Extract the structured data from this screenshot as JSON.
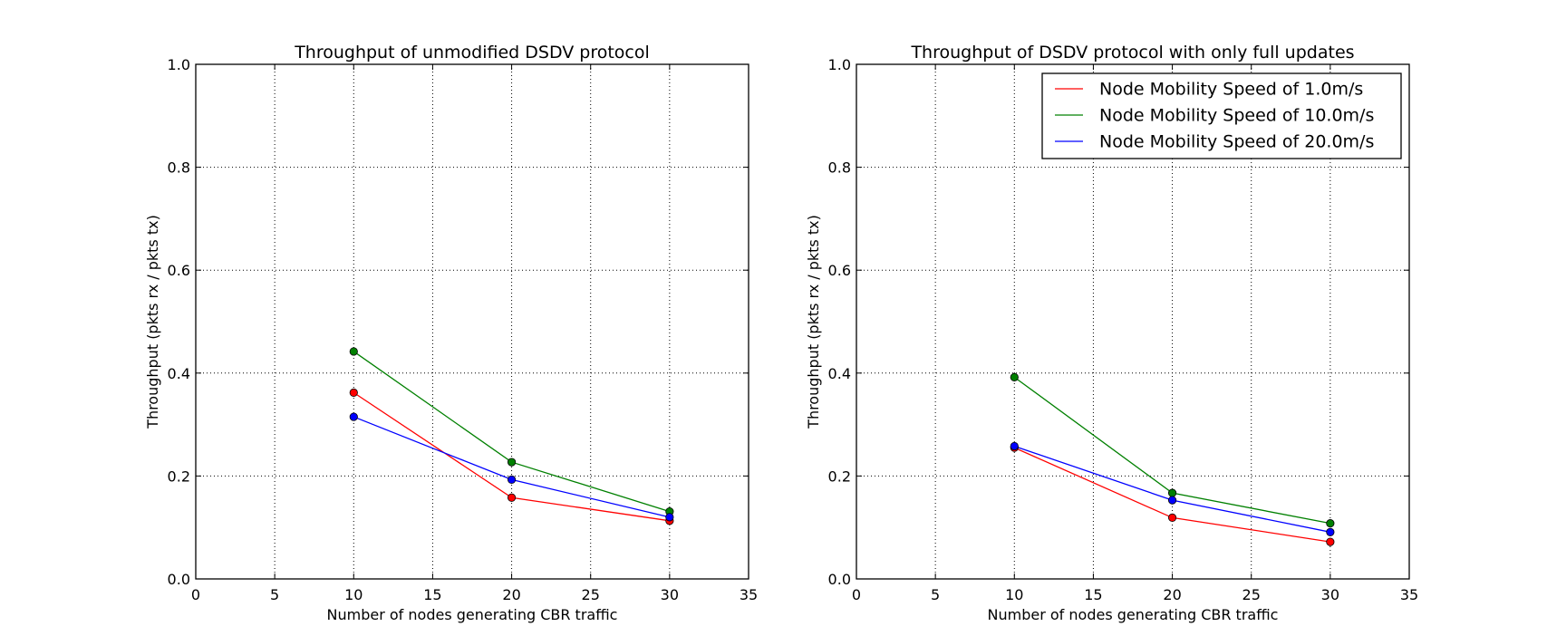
{
  "chart_data": [
    {
      "type": "line",
      "title": "Throughput of unmodified DSDV protocol",
      "xlabel": "Number of nodes generating CBR traffic",
      "ylabel": "Throughput (pkts rx / pkts tx)",
      "xlim": [
        0,
        35
      ],
      "ylim": [
        0.0,
        1.0
      ],
      "xticks": [
        "0",
        "5",
        "10",
        "15",
        "20",
        "25",
        "30",
        "35"
      ],
      "yticks": [
        "0.0",
        "0.2",
        "0.4",
        "0.6",
        "0.8",
        "1.0"
      ],
      "grid": true,
      "legend": null,
      "x": [
        10,
        20,
        30
      ],
      "series": [
        {
          "values": [
            0.362,
            0.158,
            0.113
          ],
          "color": "#ff0000"
        },
        {
          "values": [
            0.442,
            0.227,
            0.131
          ],
          "color": "#008000"
        },
        {
          "values": [
            0.315,
            0.193,
            0.12
          ],
          "color": "#0000ff"
        }
      ]
    },
    {
      "type": "line",
      "title": "Throughput of DSDV protocol with only full updates",
      "xlabel": "Number of nodes generating CBR traffic",
      "ylabel": "Throughput (pkts rx / pkts tx)",
      "xlim": [
        0,
        35
      ],
      "ylim": [
        0.0,
        1.0
      ],
      "xticks": [
        "0",
        "5",
        "10",
        "15",
        "20",
        "25",
        "30",
        "35"
      ],
      "yticks": [
        "0.0",
        "0.2",
        "0.4",
        "0.6",
        "0.8",
        "1.0"
      ],
      "grid": true,
      "legend": "top-right",
      "x": [
        10,
        20,
        30
      ],
      "series": [
        {
          "name": "Node Mobility Speed of 1.0m/s",
          "values": [
            0.255,
            0.119,
            0.072
          ],
          "color": "#ff0000"
        },
        {
          "name": "Node Mobility Speed of 10.0m/s",
          "values": [
            0.392,
            0.167,
            0.108
          ],
          "color": "#008000"
        },
        {
          "name": "Node Mobility Speed of 20.0m/s",
          "values": [
            0.258,
            0.153,
            0.091
          ],
          "color": "#0000ff"
        }
      ]
    }
  ]
}
